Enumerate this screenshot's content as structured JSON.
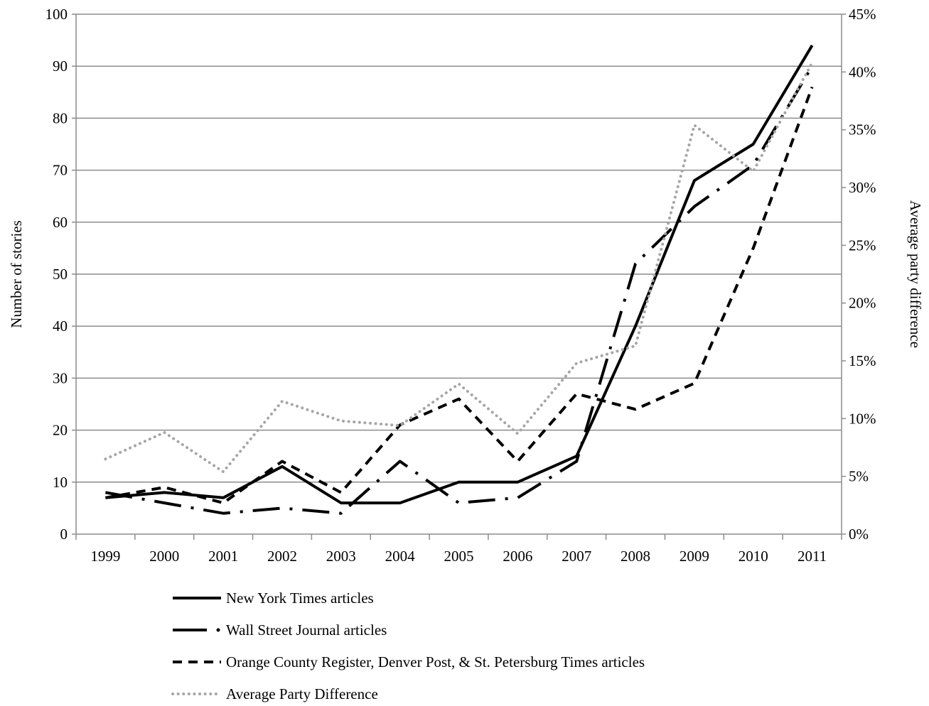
{
  "chart_data": {
    "type": "line",
    "categories": [
      "1999",
      "2000",
      "2001",
      "2002",
      "2003",
      "2004",
      "2005",
      "2006",
      "2007",
      "2008",
      "2009",
      "2010",
      "2011"
    ],
    "ylabel": "Number of stories",
    "ylabel_right": "Average party difference",
    "ylim": [
      0,
      100
    ],
    "ylim_right": [
      0,
      45
    ],
    "y_ticks": [
      "0",
      "10",
      "20",
      "30",
      "40",
      "50",
      "60",
      "70",
      "80",
      "90",
      "100"
    ],
    "y_right_ticks": [
      "0%",
      "5%",
      "10%",
      "15%",
      "20%",
      "25%",
      "30%",
      "35%",
      "40%",
      "45%"
    ],
    "grid": true,
    "legend_position": "bottom",
    "series": [
      {
        "name": "New York Times articles",
        "axis": "left",
        "style": "solid",
        "color": "#000000",
        "values": [
          7,
          8,
          7,
          13,
          6,
          6,
          10,
          10,
          15,
          40,
          68,
          75,
          94
        ]
      },
      {
        "name": "Wall Street Journal articles",
        "axis": "left",
        "style": "long-dash-dot",
        "color": "#000000",
        "values": [
          8,
          6,
          4,
          5,
          4,
          14,
          6,
          7,
          14,
          52,
          63,
          71,
          90
        ]
      },
      {
        "name": "Orange County Register, Denver Post, & St. Petersburg Times articles",
        "axis": "left",
        "style": "dash",
        "color": "#000000",
        "values": [
          7,
          9,
          6,
          14,
          8,
          21,
          26,
          14,
          27,
          24,
          29,
          55,
          86
        ]
      },
      {
        "name": "Average Party Difference",
        "axis": "right",
        "style": "dot",
        "color": "#a6a6a6",
        "values": [
          6.5,
          8.8,
          5.4,
          11.5,
          9.8,
          9.4,
          13.0,
          8.7,
          14.8,
          16.3,
          35.4,
          31.4,
          40.8
        ]
      }
    ]
  }
}
